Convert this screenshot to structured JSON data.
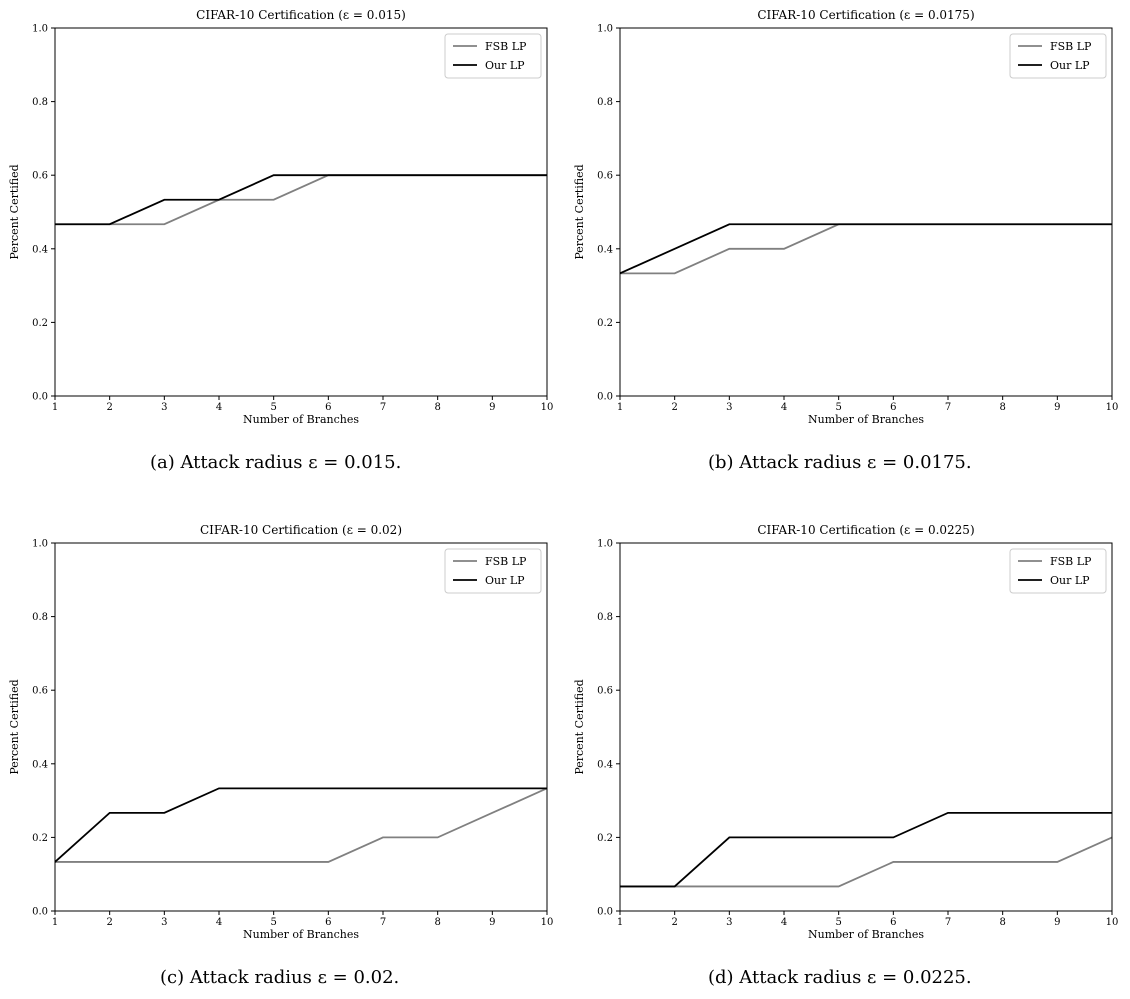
{
  "colors": {
    "fsb": "#808080",
    "ours": "#000000"
  },
  "chart_data": [
    {
      "type": "line",
      "title": "CIFAR-10 Certification (ε = 0.015)",
      "xlabel": "Number of Branches",
      "ylabel": "Percent Certified",
      "x": [
        1,
        2,
        3,
        4,
        5,
        6,
        7,
        8,
        9,
        10
      ],
      "xlim": [
        1,
        10
      ],
      "ylim": [
        0,
        1
      ],
      "xticks": [
        "1",
        "2",
        "3",
        "4",
        "5",
        "6",
        "7",
        "8",
        "9",
        "10"
      ],
      "yticks": [
        "0.0",
        "0.2",
        "0.4",
        "0.6",
        "0.8",
        "1.0"
      ],
      "grid": false,
      "legend": "top-right",
      "caption": "(a) Attack radius ε = 0.015.",
      "series": [
        {
          "name": "FSB LP",
          "color": "#808080",
          "values": [
            0.4667,
            0.4667,
            0.4667,
            0.5333,
            0.5333,
            0.6,
            0.6,
            0.6,
            0.6,
            0.6
          ]
        },
        {
          "name": "Our LP",
          "color": "#000000",
          "values": [
            0.4667,
            0.4667,
            0.5333,
            0.5333,
            0.6,
            0.6,
            0.6,
            0.6,
            0.6,
            0.6
          ]
        }
      ]
    },
    {
      "type": "line",
      "title": "CIFAR-10 Certification (ε = 0.0175)",
      "xlabel": "Number of Branches",
      "ylabel": "Percent Certified",
      "x": [
        1,
        2,
        3,
        4,
        5,
        6,
        7,
        8,
        9,
        10
      ],
      "xlim": [
        1,
        10
      ],
      "ylim": [
        0,
        1
      ],
      "xticks": [
        "1",
        "2",
        "3",
        "4",
        "5",
        "6",
        "7",
        "8",
        "9",
        "10"
      ],
      "yticks": [
        "0.0",
        "0.2",
        "0.4",
        "0.6",
        "0.8",
        "1.0"
      ],
      "grid": false,
      "legend": "top-right",
      "caption": "(b) Attack radius ε = 0.0175.",
      "series": [
        {
          "name": "FSB LP",
          "color": "#808080",
          "values": [
            0.3333,
            0.3333,
            0.4,
            0.4,
            0.4667,
            0.4667,
            0.4667,
            0.4667,
            0.4667,
            0.4667
          ]
        },
        {
          "name": "Our LP",
          "color": "#000000",
          "values": [
            0.3333,
            0.4,
            0.4667,
            0.4667,
            0.4667,
            0.4667,
            0.4667,
            0.4667,
            0.4667,
            0.4667
          ]
        }
      ]
    },
    {
      "type": "line",
      "title": "CIFAR-10 Certification (ε = 0.02)",
      "xlabel": "Number of Branches",
      "ylabel": "Percent Certified",
      "x": [
        1,
        2,
        3,
        4,
        5,
        6,
        7,
        8,
        9,
        10
      ],
      "xlim": [
        1,
        10
      ],
      "ylim": [
        0,
        1
      ],
      "xticks": [
        "1",
        "2",
        "3",
        "4",
        "5",
        "6",
        "7",
        "8",
        "9",
        "10"
      ],
      "yticks": [
        "0.0",
        "0.2",
        "0.4",
        "0.6",
        "0.8",
        "1.0"
      ],
      "grid": false,
      "legend": "top-right",
      "caption": "(c) Attack radius ε = 0.02.",
      "series": [
        {
          "name": "FSB LP",
          "color": "#808080",
          "values": [
            0.1333,
            0.1333,
            0.1333,
            0.1333,
            0.1333,
            0.1333,
            0.2,
            0.2,
            0.2667,
            0.3333
          ]
        },
        {
          "name": "Our LP",
          "color": "#000000",
          "values": [
            0.1333,
            0.2667,
            0.2667,
            0.3333,
            0.3333,
            0.3333,
            0.3333,
            0.3333,
            0.3333,
            0.3333
          ]
        }
      ]
    },
    {
      "type": "line",
      "title": "CIFAR-10 Certification (ε = 0.0225)",
      "xlabel": "Number of Branches",
      "ylabel": "Percent Certified",
      "x": [
        1,
        2,
        3,
        4,
        5,
        6,
        7,
        8,
        9,
        10
      ],
      "xlim": [
        1,
        10
      ],
      "ylim": [
        0,
        1
      ],
      "xticks": [
        "1",
        "2",
        "3",
        "4",
        "5",
        "6",
        "7",
        "8",
        "9",
        "10"
      ],
      "yticks": [
        "0.0",
        "0.2",
        "0.4",
        "0.6",
        "0.8",
        "1.0"
      ],
      "grid": false,
      "legend": "top-right",
      "caption": "(d) Attack radius ε = 0.0225.",
      "series": [
        {
          "name": "FSB LP",
          "color": "#808080",
          "values": [
            0.0667,
            0.0667,
            0.0667,
            0.0667,
            0.0667,
            0.1333,
            0.1333,
            0.1333,
            0.1333,
            0.2
          ]
        },
        {
          "name": "Our LP",
          "color": "#000000",
          "values": [
            0.0667,
            0.0667,
            0.2,
            0.2,
            0.2,
            0.2,
            0.2667,
            0.2667,
            0.2667,
            0.2667
          ]
        }
      ]
    }
  ]
}
